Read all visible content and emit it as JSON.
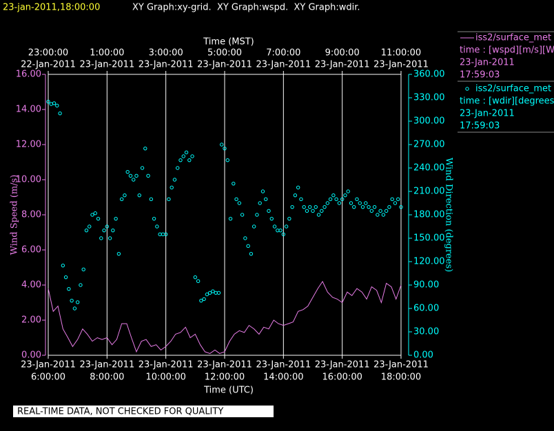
{
  "chart_data": {
    "type": "xy",
    "timestamp": "23-jan-2011,18:00:00",
    "title": "XY Graph:xy-grid.  XY Graph:wspd.  XY Graph:wdir.",
    "x_label": "Time (UTC)",
    "x2_label": "Time (MST)",
    "y_label": "Wind Speed (m/s)",
    "y2_label": "Wind Direction (degrees)",
    "footer": "REAL-TIME DATA, NOT CHECKED FOR QUALITY",
    "grid": true,
    "xlim": [
      6,
      18
    ],
    "xticks": [
      {
        "value": 6,
        "label": "6:00:00"
      },
      {
        "value": 8,
        "label": "8:00:00"
      },
      {
        "value": 10,
        "label": "10:00:00"
      },
      {
        "value": 12,
        "label": "12:00:00"
      },
      {
        "value": 14,
        "label": "14:00:00"
      },
      {
        "value": 16,
        "label": "16:00:00"
      },
      {
        "value": 18,
        "label": "18:00:00"
      }
    ],
    "xtick_dates": [
      "23-Jan-2011",
      "23-Jan-2011",
      "23-Jan-2011",
      "23-Jan-2011",
      "23-Jan-2011",
      "23-Jan-2011",
      "23-Jan-2011"
    ],
    "x2ticks": [
      {
        "value": 6,
        "label": "23:00:00"
      },
      {
        "value": 8,
        "label": "1:00:00"
      },
      {
        "value": 10,
        "label": "3:00:00"
      },
      {
        "value": 12,
        "label": "5:00:00"
      },
      {
        "value": 14,
        "label": "7:00:00"
      },
      {
        "value": 16,
        "label": "9:00:00"
      },
      {
        "value": 18,
        "label": "11:00:00"
      }
    ],
    "x2tick_dates": [
      "22-Jan-2011",
      "23-Jan-2011",
      "23-Jan-2011",
      "23-Jan-2011",
      "23-Jan-2011",
      "23-Jan-2011",
      "23-Jan-2011"
    ],
    "ylim": [
      0,
      16
    ],
    "yticks": [
      {
        "value": 0,
        "label": "0.00"
      },
      {
        "value": 2,
        "label": "2.00"
      },
      {
        "value": 4,
        "label": "4.00"
      },
      {
        "value": 6,
        "label": "6.00"
      },
      {
        "value": 8,
        "label": "8.00"
      },
      {
        "value": 10,
        "label": "10.00"
      },
      {
        "value": 12,
        "label": "12.00"
      },
      {
        "value": 14,
        "label": "14.00"
      },
      {
        "value": 16,
        "label": "16.00"
      }
    ],
    "y2lim": [
      0,
      360
    ],
    "y2ticks": [
      {
        "value": 0,
        "label": "0.00"
      },
      {
        "value": 30,
        "label": "30.00"
      },
      {
        "value": 60,
        "label": "60.00"
      },
      {
        "value": 90,
        "label": "90.00"
      },
      {
        "value": 120,
        "label": "120.00"
      },
      {
        "value": 150,
        "label": "150.00"
      },
      {
        "value": 180,
        "label": "180.00"
      },
      {
        "value": 210,
        "label": "210.00"
      },
      {
        "value": 240,
        "label": "240.00"
      },
      {
        "value": 270,
        "label": "270.00"
      },
      {
        "value": 300,
        "label": "300.00"
      },
      {
        "value": 330,
        "label": "330.00"
      },
      {
        "value": 360,
        "label": "360.00"
      }
    ],
    "series": [
      {
        "name": "iss2/surface_met",
        "legend_lines": [
          "time : [wspd][m/s][Wind",
          "23-Jan-2011",
          "17:59:03"
        ],
        "color": "#e77de7",
        "style": "line",
        "x": [
          6.0,
          6.17,
          6.33,
          6.5,
          6.67,
          6.83,
          7.0,
          7.17,
          7.33,
          7.5,
          7.67,
          7.83,
          8.0,
          8.17,
          8.33,
          8.5,
          8.67,
          8.83,
          9.0,
          9.17,
          9.33,
          9.5,
          9.67,
          9.83,
          10.0,
          10.17,
          10.33,
          10.5,
          10.67,
          10.83,
          11.0,
          11.17,
          11.33,
          11.5,
          11.67,
          11.83,
          12.0,
          12.17,
          12.33,
          12.5,
          12.67,
          12.83,
          13.0,
          13.17,
          13.33,
          13.5,
          13.67,
          13.83,
          14.0,
          14.17,
          14.33,
          14.5,
          14.67,
          14.83,
          15.0,
          15.17,
          15.33,
          15.5,
          15.67,
          15.83,
          16.0,
          16.17,
          16.33,
          16.5,
          16.67,
          16.83,
          17.0,
          17.17,
          17.33,
          17.5,
          17.67,
          17.83,
          18.0
        ],
        "values": [
          3.8,
          2.5,
          2.8,
          1.5,
          1.0,
          0.5,
          0.9,
          1.5,
          1.2,
          0.8,
          1.0,
          0.9,
          1.0,
          0.6,
          0.9,
          1.8,
          1.8,
          1.0,
          0.2,
          0.8,
          0.9,
          0.5,
          0.6,
          0.3,
          0.5,
          0.8,
          1.2,
          1.3,
          1.6,
          1.0,
          1.2,
          0.6,
          0.2,
          0.1,
          0.3,
          0.1,
          0.2,
          0.8,
          1.2,
          1.4,
          1.3,
          1.7,
          1.5,
          1.2,
          1.6,
          1.5,
          2.0,
          1.8,
          1.7,
          1.8,
          1.9,
          2.5,
          2.6,
          2.8,
          3.3,
          3.8,
          4.2,
          3.6,
          3.3,
          3.2,
          3.0,
          3.6,
          3.4,
          3.8,
          3.6,
          3.2,
          3.9,
          3.7,
          3.0,
          4.1,
          3.9,
          3.2,
          4.0
        ]
      },
      {
        "name": "iss2/surface_met",
        "legend_lines": [
          "time : [wdir][degrees][V",
          "23-Jan-2011",
          "17:59:03"
        ],
        "color": "#00ffff",
        "style": "points",
        "axis": "y2",
        "x": [
          6.0,
          6.1,
          6.2,
          6.3,
          6.4,
          6.5,
          6.6,
          6.7,
          6.8,
          6.9,
          7.0,
          7.1,
          7.2,
          7.3,
          7.4,
          7.5,
          7.6,
          7.7,
          7.8,
          7.9,
          8.0,
          8.1,
          8.2,
          8.3,
          8.4,
          8.5,
          8.6,
          8.7,
          8.8,
          8.9,
          9.0,
          9.1,
          9.2,
          9.3,
          9.4,
          9.5,
          9.6,
          9.7,
          9.8,
          9.9,
          10.0,
          10.1,
          10.2,
          10.3,
          10.4,
          10.5,
          10.6,
          10.7,
          10.8,
          10.9,
          11.0,
          11.1,
          11.2,
          11.3,
          11.4,
          11.5,
          11.6,
          11.7,
          11.8,
          11.9,
          12.0,
          12.1,
          12.2,
          12.3,
          12.4,
          12.5,
          12.6,
          12.7,
          12.8,
          12.9,
          13.0,
          13.1,
          13.2,
          13.3,
          13.4,
          13.5,
          13.6,
          13.7,
          13.8,
          13.9,
          14.0,
          14.1,
          14.2,
          14.3,
          14.4,
          14.5,
          14.6,
          14.7,
          14.8,
          14.9,
          15.0,
          15.1,
          15.2,
          15.3,
          15.4,
          15.5,
          15.6,
          15.7,
          15.8,
          15.9,
          16.0,
          16.1,
          16.2,
          16.3,
          16.4,
          16.5,
          16.6,
          16.7,
          16.8,
          16.9,
          17.0,
          17.1,
          17.2,
          17.3,
          17.4,
          17.5,
          17.6,
          17.7,
          17.8,
          17.9,
          18.0
        ],
        "values": [
          325,
          322,
          323,
          320,
          310,
          115,
          100,
          85,
          70,
          60,
          68,
          90,
          110,
          160,
          165,
          180,
          182,
          175,
          150,
          160,
          165,
          150,
          160,
          175,
          130,
          200,
          205,
          235,
          230,
          225,
          230,
          205,
          240,
          265,
          230,
          200,
          175,
          165,
          155,
          155,
          155,
          200,
          215,
          225,
          240,
          250,
          255,
          260,
          250,
          255,
          100,
          95,
          70,
          72,
          78,
          80,
          82,
          80,
          80,
          270,
          265,
          250,
          175,
          220,
          200,
          195,
          180,
          150,
          140,
          130,
          165,
          180,
          195,
          210,
          200,
          185,
          175,
          165,
          160,
          160,
          155,
          165,
          175,
          190,
          205,
          215,
          200,
          190,
          185,
          190,
          185,
          190,
          180,
          185,
          190,
          195,
          200,
          205,
          200,
          195,
          200,
          205,
          210,
          195,
          190,
          200,
          195,
          190,
          195,
          190,
          185,
          190,
          180,
          185,
          180,
          185,
          190,
          200,
          195,
          200,
          190
        ]
      }
    ]
  }
}
